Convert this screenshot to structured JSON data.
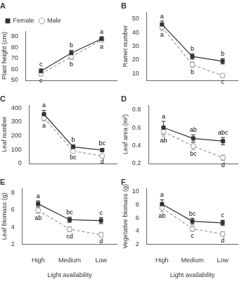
{
  "chart_data": [
    {
      "type": "line",
      "title": "A",
      "categories": [
        "High",
        "Medium",
        "Low"
      ],
      "ylabel": "Plant height (cm)",
      "ylim": [
        50,
        95
      ],
      "yticks": [
        50,
        60,
        70,
        80,
        90
      ],
      "grid": false,
      "legend": "upper left",
      "tick_labels": "y",
      "series": [
        {
          "name": "Female",
          "color": "#333333",
          "marker": "square",
          "line_style": "solid",
          "values": [
            58.5,
            75.0,
            88.0
          ],
          "errors": [
            2.0,
            2.5,
            2.0
          ],
          "letters": [
            "c",
            "b",
            "a"
          ]
        },
        {
          "name": "Male",
          "color": "#999999",
          "marker": "open_circle",
          "line_style": "dashed",
          "values": [
            56.0,
            71.5,
            87.0
          ],
          "errors": [
            2.0,
            2.5,
            2.0
          ],
          "letters": [
            "c",
            "b",
            "a"
          ]
        }
      ]
    },
    {
      "type": "line",
      "title": "B",
      "categories": [
        "High",
        "Medium",
        "Low"
      ],
      "ylabel": "Ramet number",
      "ylim": [
        5,
        55
      ],
      "yticks": [
        10,
        20,
        30,
        40,
        50
      ],
      "grid": false,
      "tick_labels": "y",
      "series": [
        {
          "name": "Female",
          "color": "#333333",
          "marker": "square",
          "line_style": "solid",
          "values": [
            46.0,
            22.5,
            19.0
          ],
          "errors": [
            2.5,
            2.0,
            2.0
          ],
          "letters": [
            "a",
            "b",
            "b"
          ]
        },
        {
          "name": "Male",
          "color": "#999999",
          "marker": "open_circle",
          "line_style": "dashed",
          "values": [
            44.0,
            16.5,
            8.5
          ],
          "errors": [
            2.5,
            2.0,
            1.5
          ],
          "letters": [
            "a",
            "b",
            "c"
          ]
        }
      ]
    },
    {
      "type": "line",
      "title": "C",
      "categories": [
        "High",
        "Medium",
        "Low"
      ],
      "ylabel": "Leaf number",
      "ylim": [
        0,
        420
      ],
      "yticks": [
        0,
        100,
        200,
        300,
        400
      ],
      "grid": false,
      "tick_labels": "y",
      "series": [
        {
          "name": "Female",
          "color": "#333333",
          "marker": "square",
          "line_style": "solid",
          "values": [
            355,
            120,
            97
          ],
          "errors": [
            28,
            15,
            12
          ],
          "letters": [
            "a",
            "b",
            "bc"
          ]
        },
        {
          "name": "Male",
          "color": "#999999",
          "marker": "open_circle",
          "line_style": "dashed",
          "values": [
            328,
            90,
            55
          ],
          "errors": [
            22,
            12,
            8
          ],
          "letters": [
            "a",
            "bc",
            "d"
          ]
        }
      ]
    },
    {
      "type": "line",
      "title": "D",
      "categories": [
        "High",
        "Medium",
        "Low"
      ],
      "ylabel": "Leaf area (m²)",
      "ylim": [
        0.2,
        0.85
      ],
      "yticks": [
        0.2,
        0.4,
        0.6,
        0.8
      ],
      "grid": false,
      "tick_labels": "y",
      "series": [
        {
          "name": "Female",
          "color": "#333333",
          "marker": "square",
          "line_style": "solid",
          "values": [
            0.6,
            0.48,
            0.45
          ],
          "errors": [
            0.07,
            0.04,
            0.04
          ],
          "letters": [
            "a",
            "ab",
            "abc"
          ]
        },
        {
          "name": "Male",
          "color": "#999999",
          "marker": "open_circle",
          "line_style": "dashed",
          "values": [
            0.555,
            0.395,
            0.265
          ],
          "errors": [
            0.05,
            0.04,
            0.03
          ],
          "letters": [
            "ab",
            "bc",
            "d"
          ]
        }
      ]
    },
    {
      "type": "line",
      "title": "E",
      "categories": [
        "High",
        "Medium",
        "Low"
      ],
      "xlabel": "Light availability",
      "ylabel": "Leaf biomass (g)",
      "ylim": [
        2,
        8.5
      ],
      "yticks": [
        2,
        4,
        6,
        8
      ],
      "grid": false,
      "series": [
        {
          "name": "Female",
          "color": "#333333",
          "marker": "square",
          "line_style": "solid",
          "values": [
            6.7,
            4.85,
            4.75
          ],
          "errors": [
            0.35,
            0.3,
            0.35
          ],
          "letters": [
            "a",
            "bc",
            "c"
          ]
        },
        {
          "name": "Male",
          "color": "#999999",
          "marker": "open_circle",
          "line_style": "dashed",
          "values": [
            5.95,
            3.75,
            3.1
          ],
          "errors": [
            0.35,
            0.3,
            0.25
          ],
          "letters": [
            "ab",
            "cd",
            "d"
          ]
        }
      ]
    },
    {
      "type": "line",
      "title": "F",
      "categories": [
        "High",
        "Medium",
        "Low"
      ],
      "xlabel": "Light availability",
      "ylabel": "Vegetative biomass (g)",
      "ylim": [
        2,
        10.5
      ],
      "yticks": [
        2,
        4,
        6,
        8,
        10
      ],
      "grid": false,
      "series": [
        {
          "name": "Female",
          "color": "#333333",
          "marker": "square",
          "line_style": "solid",
          "values": [
            8.1,
            5.5,
            5.25
          ],
          "errors": [
            0.65,
            0.45,
            0.4
          ],
          "letters": [
            "a",
            "bc",
            "c"
          ]
        },
        {
          "name": "Male",
          "color": "#999999",
          "marker": "open_circle",
          "line_style": "dashed",
          "values": [
            7.55,
            4.35,
            3.55
          ],
          "errors": [
            0.55,
            0.4,
            0.35
          ],
          "letters": [
            "ab",
            "c",
            "d"
          ]
        }
      ]
    }
  ]
}
